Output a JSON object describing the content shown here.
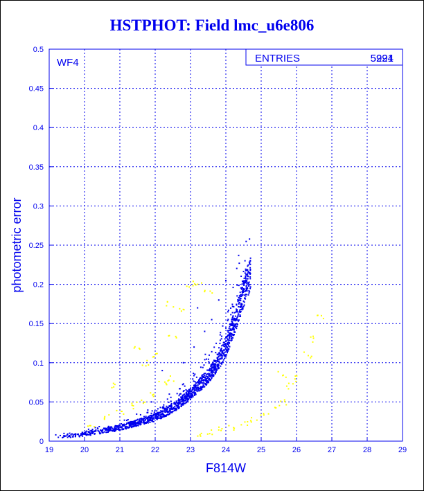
{
  "chart_data": {
    "type": "scatter",
    "title": "HSTPHOT: Field lmc_u6e806",
    "xlabel": "F814W",
    "ylabel": "photometric error",
    "xlim": [
      19,
      29
    ],
    "ylim": [
      0,
      0.5
    ],
    "xticks": [
      "19",
      "20",
      "21",
      "22",
      "23",
      "24",
      "25",
      "26",
      "27",
      "28",
      "29"
    ],
    "yticks": [
      "0",
      "0.05",
      "0.1",
      "0.15",
      "0.2",
      "0.25",
      "0.3",
      "0.35",
      "0.4",
      "0.45",
      "0.5"
    ],
    "grid": true,
    "panel_label": "WF4",
    "stats_box": {
      "label": "ENTRIES",
      "values": [
        "5994",
        "5221"
      ]
    },
    "series": [
      {
        "color": "#0000ee",
        "trend": [
          [
            19.0,
            0.005
          ],
          [
            20.0,
            0.009
          ],
          [
            21.0,
            0.017
          ],
          [
            22.0,
            0.03
          ],
          [
            22.5,
            0.042
          ],
          [
            23.0,
            0.06
          ],
          [
            23.5,
            0.083
          ],
          [
            23.8,
            0.103
          ],
          [
            24.0,
            0.12
          ],
          [
            24.2,
            0.145
          ],
          [
            24.35,
            0.165
          ],
          [
            24.5,
            0.19
          ],
          [
            24.7,
            0.215
          ]
        ],
        "outliers": [
          [
            22.4,
            0.06
          ],
          [
            22.8,
            0.1
          ],
          [
            23.1,
            0.12
          ],
          [
            23.4,
            0.14
          ],
          [
            23.6,
            0.155
          ],
          [
            23.2,
            0.17
          ],
          [
            24.0,
            0.205
          ],
          [
            23.8,
            0.18
          ],
          [
            22.2,
            0.09
          ],
          [
            21.9,
            0.05
          ]
        ]
      },
      {
        "color": "#ffff00",
        "points": [
          [
            20.2,
            0.022
          ],
          [
            20.6,
            0.03
          ],
          [
            21.0,
            0.038
          ],
          [
            21.3,
            0.045
          ],
          [
            21.6,
            0.05
          ],
          [
            21.9,
            0.06
          ],
          [
            22.2,
            0.075
          ],
          [
            22.4,
            0.08
          ],
          [
            21.7,
            0.1
          ],
          [
            22.0,
            0.11
          ],
          [
            22.5,
            0.135
          ],
          [
            22.7,
            0.165
          ],
          [
            22.4,
            0.175
          ],
          [
            23.0,
            0.2
          ],
          [
            23.2,
            0.2
          ],
          [
            23.3,
            0.008
          ],
          [
            23.6,
            0.011
          ],
          [
            23.9,
            0.014
          ],
          [
            24.2,
            0.018
          ],
          [
            24.5,
            0.022
          ],
          [
            24.8,
            0.027
          ],
          [
            25.1,
            0.033
          ],
          [
            25.4,
            0.042
          ],
          [
            25.6,
            0.05
          ],
          [
            25.8,
            0.07
          ],
          [
            25.9,
            0.08
          ],
          [
            25.6,
            0.085
          ],
          [
            26.3,
            0.11
          ],
          [
            26.4,
            0.13
          ],
          [
            26.7,
            0.16
          ],
          [
            21.5,
            0.12
          ],
          [
            20.8,
            0.07
          ],
          [
            23.5,
            0.19
          ]
        ]
      }
    ]
  }
}
